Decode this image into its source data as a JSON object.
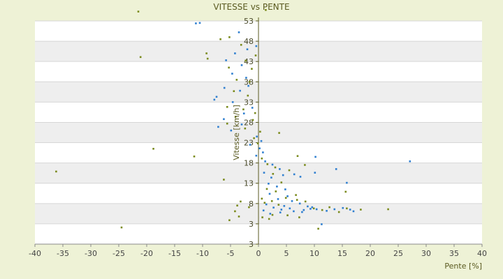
{
  "chart_data": {
    "type": "scatter",
    "title": "VITESSE vs PENTE",
    "xlabel": "Pente [%]",
    "ylabel": "Vitesse [km/h]",
    "xlim": [
      -40,
      40
    ],
    "ylim": [
      -2,
      53
    ],
    "x_ticks": [
      "-40",
      "-35",
      "-30",
      "-25",
      "-20",
      "-15",
      "-10",
      "-5",
      "0",
      "5",
      "10",
      "15",
      "20",
      "25",
      "30",
      "35",
      "40"
    ],
    "y_ticks": [
      "3",
      "3",
      "8",
      "13",
      "18",
      "23",
      "28",
      "33",
      "38",
      "43",
      "48",
      "53"
    ],
    "grid": true,
    "legend": "none",
    "colors": {
      "series_a": "#2f7fd0",
      "series_b": "#7a8a1c",
      "band": "#eeeeee",
      "panel": "#ffffff",
      "background": "#eef2d6"
    },
    "series": [
      {
        "values": [
          [
            -10.5,
            52.5
          ],
          [
            -11.2,
            52.4
          ],
          [
            -3.5,
            50.2
          ],
          [
            -4.2,
            45.0
          ],
          [
            -2.0,
            46.0
          ],
          [
            -0.4,
            46.8
          ],
          [
            -5.8,
            43.3
          ],
          [
            -3.0,
            42.1
          ],
          [
            -4.7,
            40.0
          ],
          [
            -2.2,
            39.0
          ],
          [
            -1.8,
            37.0
          ],
          [
            -6.1,
            36.5
          ],
          [
            -3.3,
            35.8
          ],
          [
            -7.5,
            34.3
          ],
          [
            -7.9,
            33.6
          ],
          [
            -4.6,
            33.0
          ],
          [
            -1.1,
            31.6
          ],
          [
            -2.6,
            30.2
          ],
          [
            -6.2,
            28.8
          ],
          [
            -3.0,
            27.5
          ],
          [
            -7.2,
            26.9
          ],
          [
            -4.9,
            26.0
          ],
          [
            -0.3,
            24.5
          ],
          [
            0.5,
            23.4
          ],
          [
            -1.5,
            22.5
          ],
          [
            0.2,
            21.6
          ],
          [
            0.8,
            20.6
          ],
          [
            -0.4,
            19.8
          ],
          [
            1.2,
            18.4
          ],
          [
            2.5,
            17.6
          ],
          [
            3.8,
            16.5
          ],
          [
            1.0,
            15.6
          ],
          [
            4.4,
            15.0
          ],
          [
            2.3,
            14.4
          ],
          [
            6.4,
            15.2
          ],
          [
            7.5,
            14.6
          ],
          [
            10.2,
            19.5
          ],
          [
            13.9,
            16.5
          ],
          [
            10.1,
            15.6
          ],
          [
            15.8,
            13.1
          ],
          [
            27.1,
            18.4
          ],
          [
            1.8,
            12.9
          ],
          [
            3.3,
            12.2
          ],
          [
            4.8,
            11.5
          ],
          [
            2.0,
            10.4
          ],
          [
            5.2,
            9.8
          ],
          [
            3.5,
            9.1
          ],
          [
            6.0,
            8.6
          ],
          [
            7.4,
            8.0
          ],
          [
            8.8,
            7.3
          ],
          [
            1.4,
            7.8
          ],
          [
            2.7,
            7.0
          ],
          [
            4.1,
            6.5
          ],
          [
            5.6,
            6.8
          ],
          [
            9.3,
            6.7
          ],
          [
            10.4,
            6.6
          ],
          [
            12.2,
            6.2
          ],
          [
            13.6,
            6.6
          ],
          [
            15.1,
            6.9
          ],
          [
            16.4,
            6.5
          ],
          [
            17.0,
            6.1
          ],
          [
            0.9,
            6.3
          ],
          [
            2.1,
            5.5
          ],
          [
            3.9,
            5.8
          ],
          [
            6.3,
            6.1
          ],
          [
            7.8,
            5.9
          ],
          [
            11.3,
            2.9
          ],
          [
            9.6,
            7.1
          ],
          [
            8.1,
            6.4
          ],
          [
            4.6,
            7.4
          ]
        ]
      },
      {
        "values": [
          [
            -21.5,
            55.3
          ],
          [
            1.3,
            55.7
          ],
          [
            -21.1,
            44.1
          ],
          [
            -9.3,
            45.0
          ],
          [
            -9.1,
            43.7
          ],
          [
            -5.2,
            49.0
          ],
          [
            -6.8,
            48.5
          ],
          [
            -3.1,
            47.1
          ],
          [
            -0.5,
            44.5
          ],
          [
            -2.3,
            43.2
          ],
          [
            -5.3,
            41.5
          ],
          [
            -1.2,
            41.2
          ],
          [
            -3.9,
            38.5
          ],
          [
            -1.6,
            38.0
          ],
          [
            -4.4,
            35.7
          ],
          [
            -1.9,
            34.6
          ],
          [
            -5.6,
            31.8
          ],
          [
            -2.7,
            31.2
          ],
          [
            -0.6,
            30.3
          ],
          [
            -4.1,
            29.4
          ],
          [
            -1.0,
            28.6
          ],
          [
            -5.6,
            27.7
          ],
          [
            -2.4,
            26.5
          ],
          [
            0.3,
            25.7
          ],
          [
            3.7,
            25.4
          ],
          [
            -0.8,
            24.1
          ],
          [
            -0.1,
            22.8
          ],
          [
            -18.8,
            21.5
          ],
          [
            -11.5,
            19.6
          ],
          [
            0.6,
            19.1
          ],
          [
            7.0,
            19.7
          ],
          [
            1.6,
            17.7
          ],
          [
            3.0,
            16.9
          ],
          [
            5.5,
            16.2
          ],
          [
            8.3,
            17.5
          ],
          [
            2.6,
            15.3
          ],
          [
            -36.2,
            15.9
          ],
          [
            -6.2,
            13.9
          ],
          [
            4.1,
            13.2
          ],
          [
            15.6,
            10.9
          ],
          [
            1.5,
            11.6
          ],
          [
            3.1,
            11.0
          ],
          [
            6.7,
            10.1
          ],
          [
            0.6,
            9.2
          ],
          [
            2.4,
            8.6
          ],
          [
            4.9,
            9.4
          ],
          [
            6.9,
            8.9
          ],
          [
            -3.2,
            8.5
          ],
          [
            -3.8,
            7.5
          ],
          [
            -1.7,
            7.1
          ],
          [
            1.1,
            8.2
          ],
          [
            3.6,
            7.7
          ],
          [
            8.4,
            8.5
          ],
          [
            9.9,
            6.8
          ],
          [
            11.4,
            6.4
          ],
          [
            12.7,
            7.1
          ],
          [
            14.4,
            5.9
          ],
          [
            15.8,
            6.8
          ],
          [
            18.3,
            6.5
          ],
          [
            23.2,
            6.6
          ],
          [
            -4.2,
            6.1
          ],
          [
            -3.5,
            4.8
          ],
          [
            0.7,
            4.6
          ],
          [
            2.5,
            5.2
          ],
          [
            5.2,
            5.1
          ],
          [
            7.3,
            4.6
          ],
          [
            10.7,
            1.8
          ],
          [
            -5.2,
            3.9
          ],
          [
            -24.5,
            2.1
          ],
          [
            1.9,
            4.2
          ]
        ]
      }
    ]
  }
}
